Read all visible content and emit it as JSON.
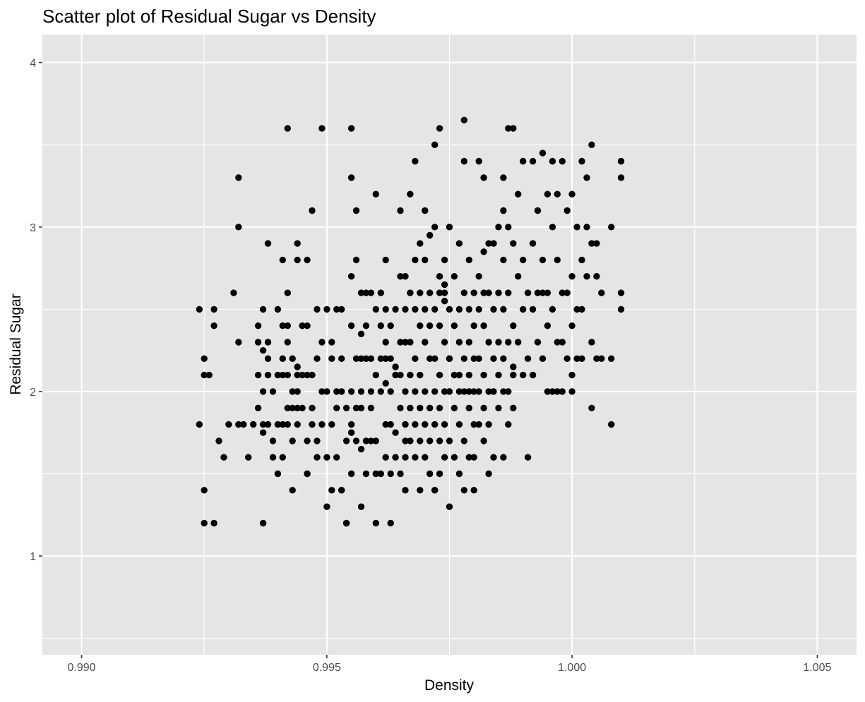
{
  "chart_data": {
    "type": "scatter",
    "title": "Scatter plot of Residual Sugar vs Density",
    "xlabel": "Density",
    "ylabel": "Residual Sugar",
    "xlim": [
      0.9892,
      1.0058
    ],
    "ylim": [
      0.4,
      4.17
    ],
    "x_ticks": [
      0.99,
      0.995,
      1.0,
      1.005
    ],
    "x_tick_labels": [
      "0.990",
      "0.995",
      "1.000",
      "1.005"
    ],
    "y_ticks": [
      1,
      2,
      3,
      4
    ],
    "y_tick_labels": [
      "1",
      "2",
      "3",
      "4"
    ],
    "grid": true,
    "background": "#e5e5e5",
    "point_color": "#000000",
    "points": [
      [
        0.9924,
        2.5
      ],
      [
        0.9924,
        1.8
      ],
      [
        0.9925,
        2.2
      ],
      [
        0.9925,
        2.1
      ],
      [
        0.9925,
        1.4
      ],
      [
        0.9925,
        1.2
      ],
      [
        0.9926,
        2.1
      ],
      [
        0.9927,
        2.5
      ],
      [
        0.9927,
        2.4
      ],
      [
        0.9927,
        1.2
      ],
      [
        0.9928,
        1.7
      ],
      [
        0.9929,
        1.6
      ],
      [
        0.993,
        1.8
      ],
      [
        0.9931,
        2.6
      ],
      [
        0.9932,
        3.3
      ],
      [
        0.9932,
        3.0
      ],
      [
        0.9932,
        2.3
      ],
      [
        0.9932,
        1.8
      ],
      [
        0.9933,
        1.8
      ],
      [
        0.9934,
        1.6
      ],
      [
        0.9935,
        1.8
      ],
      [
        0.9936,
        2.4
      ],
      [
        0.9936,
        2.3
      ],
      [
        0.9936,
        2.1
      ],
      [
        0.9937,
        2.5
      ],
      [
        0.9937,
        2.0
      ],
      [
        0.9937,
        1.75
      ],
      [
        0.9937,
        1.8
      ],
      [
        0.9937,
        1.2
      ],
      [
        0.9938,
        2.3
      ],
      [
        0.9938,
        2.1
      ],
      [
        0.9938,
        1.8
      ],
      [
        0.9938,
        2.2
      ],
      [
        0.9939,
        2.0
      ],
      [
        0.9939,
        1.7
      ],
      [
        0.9939,
        1.6
      ],
      [
        0.994,
        2.5
      ],
      [
        0.994,
        2.1
      ],
      [
        0.994,
        1.8
      ],
      [
        0.9941,
        2.8
      ],
      [
        0.9941,
        2.4
      ],
      [
        0.9941,
        2.2
      ],
      [
        0.9941,
        2.1
      ],
      [
        0.9941,
        1.8
      ],
      [
        0.9941,
        1.6
      ],
      [
        0.9942,
        2.6
      ],
      [
        0.9942,
        2.4
      ],
      [
        0.9942,
        2.3
      ],
      [
        0.9942,
        2.1
      ],
      [
        0.9942,
        1.9
      ],
      [
        0.9942,
        1.8
      ],
      [
        0.9943,
        2.2
      ],
      [
        0.9943,
        2.0
      ],
      [
        0.9943,
        1.7
      ],
      [
        0.9943,
        1.4
      ],
      [
        0.9944,
        2.9
      ],
      [
        0.9944,
        2.8
      ],
      [
        0.9944,
        2.1
      ],
      [
        0.9944,
        2.0
      ],
      [
        0.9944,
        1.9
      ],
      [
        0.9944,
        1.8
      ],
      [
        0.9945,
        2.4
      ],
      [
        0.9945,
        2.1
      ],
      [
        0.9945,
        1.9
      ],
      [
        0.9946,
        2.4
      ],
      [
        0.9946,
        2.1
      ],
      [
        0.9946,
        1.7
      ],
      [
        0.9946,
        1.5
      ],
      [
        0.9946,
        1.5
      ],
      [
        0.9947,
        2.1
      ],
      [
        0.9947,
        1.9
      ],
      [
        0.9947,
        1.8
      ],
      [
        0.9948,
        2.5
      ],
      [
        0.9948,
        2.2
      ],
      [
        0.9948,
        1.7
      ],
      [
        0.9948,
        1.6
      ],
      [
        0.9949,
        3.6
      ],
      [
        0.9949,
        2.3
      ],
      [
        0.9949,
        2.0
      ],
      [
        0.9949,
        1.8
      ],
      [
        0.995,
        1.3
      ],
      [
        0.995,
        2.5
      ],
      [
        0.995,
        2.0
      ],
      [
        0.995,
        1.6
      ],
      [
        0.9951,
        2.3
      ],
      [
        0.9951,
        2.2
      ],
      [
        0.9951,
        1.8
      ],
      [
        0.9951,
        1.4
      ],
      [
        0.9952,
        2.5
      ],
      [
        0.9952,
        2.0
      ],
      [
        0.9952,
        1.6
      ],
      [
        0.9953,
        2.2
      ],
      [
        0.9953,
        2.0
      ],
      [
        0.9953,
        1.4
      ],
      [
        0.9953,
        1.4
      ],
      [
        0.9954,
        1.9
      ],
      [
        0.9954,
        1.7
      ],
      [
        0.9954,
        1.2
      ],
      [
        0.9954,
        1.2
      ],
      [
        0.9955,
        3.3
      ],
      [
        0.9955,
        2.7
      ],
      [
        0.9955,
        2.4
      ],
      [
        0.9955,
        2.0
      ],
      [
        0.9955,
        1.8
      ],
      [
        0.9955,
        1.5
      ],
      [
        0.9956,
        3.1
      ],
      [
        0.9956,
        2.8
      ],
      [
        0.9956,
        2.2
      ],
      [
        0.9956,
        1.9
      ],
      [
        0.9956,
        1.7
      ],
      [
        0.9957,
        2.6
      ],
      [
        0.9957,
        2.2
      ],
      [
        0.9957,
        2.0
      ],
      [
        0.9957,
        1.65
      ],
      [
        0.9957,
        1.3
      ],
      [
        0.9957,
        1.9
      ],
      [
        0.9958,
        2.6
      ],
      [
        0.9958,
        2.2
      ],
      [
        0.9958,
        1.7
      ],
      [
        0.9958,
        1.5
      ],
      [
        0.9959,
        2.6
      ],
      [
        0.9959,
        2.2
      ],
      [
        0.9959,
        2.0
      ],
      [
        0.9959,
        1.9
      ],
      [
        0.9959,
        1.7
      ],
      [
        0.996,
        3.2
      ],
      [
        0.996,
        2.5
      ],
      [
        0.996,
        2.1
      ],
      [
        0.996,
        1.7
      ],
      [
        0.996,
        1.5
      ],
      [
        0.996,
        1.2
      ],
      [
        0.9961,
        2.4
      ],
      [
        0.9961,
        2.2
      ],
      [
        0.9961,
        2.0
      ],
      [
        0.9961,
        1.5
      ],
      [
        0.9962,
        2.8
      ],
      [
        0.9962,
        2.5
      ],
      [
        0.9962,
        2.2
      ],
      [
        0.9962,
        2.05
      ],
      [
        0.9962,
        1.8
      ],
      [
        0.9962,
        1.6
      ],
      [
        0.9963,
        2.4
      ],
      [
        0.9963,
        2.2
      ],
      [
        0.9963,
        2.0
      ],
      [
        0.9963,
        1.8
      ],
      [
        0.9963,
        1.5
      ],
      [
        0.9963,
        1.2
      ],
      [
        0.9964,
        2.5
      ],
      [
        0.9964,
        2.1
      ],
      [
        0.9964,
        1.75
      ],
      [
        0.9964,
        1.6
      ],
      [
        0.9965,
        3.1
      ],
      [
        0.9965,
        2.7
      ],
      [
        0.9965,
        2.3
      ],
      [
        0.9965,
        2.1
      ],
      [
        0.9965,
        1.9
      ],
      [
        0.9965,
        1.5
      ],
      [
        0.9966,
        2.7
      ],
      [
        0.9966,
        2.5
      ],
      [
        0.9966,
        2.3
      ],
      [
        0.9966,
        2.0
      ],
      [
        0.9966,
        1.8
      ],
      [
        0.9966,
        1.6
      ],
      [
        0.9966,
        1.4
      ],
      [
        0.9967,
        3.2
      ],
      [
        0.9967,
        2.6
      ],
      [
        0.9967,
        2.3
      ],
      [
        0.9967,
        2.1
      ],
      [
        0.9967,
        1.9
      ],
      [
        0.9967,
        1.7
      ],
      [
        0.9968,
        2.8
      ],
      [
        0.9968,
        2.5
      ],
      [
        0.9968,
        2.2
      ],
      [
        0.9968,
        2.0
      ],
      [
        0.9968,
        1.8
      ],
      [
        0.9968,
        1.6
      ],
      [
        0.9969,
        2.6
      ],
      [
        0.9969,
        2.4
      ],
      [
        0.9969,
        2.1
      ],
      [
        0.9969,
        1.9
      ],
      [
        0.9969,
        1.7
      ],
      [
        0.9969,
        1.4
      ],
      [
        0.997,
        3.1
      ],
      [
        0.997,
        2.8
      ],
      [
        0.997,
        2.5
      ],
      [
        0.997,
        2.3
      ],
      [
        0.997,
        2.0
      ],
      [
        0.997,
        1.8
      ],
      [
        0.997,
        1.6
      ],
      [
        0.9971,
        2.6
      ],
      [
        0.9971,
        2.4
      ],
      [
        0.9971,
        2.2
      ],
      [
        0.9971,
        1.9
      ],
      [
        0.9971,
        1.7
      ],
      [
        0.9971,
        1.5
      ],
      [
        0.9972,
        3.0
      ],
      [
        0.9972,
        2.5
      ],
      [
        0.9972,
        2.2
      ],
      [
        0.9972,
        2.0
      ],
      [
        0.9972,
        1.8
      ],
      [
        0.9972,
        1.4
      ],
      [
        0.9972,
        1.4
      ],
      [
        0.9973,
        2.6
      ],
      [
        0.9973,
        2.4
      ],
      [
        0.9973,
        2.1
      ],
      [
        0.9973,
        1.9
      ],
      [
        0.9973,
        1.7
      ],
      [
        0.9973,
        1.5
      ],
      [
        0.9974,
        2.8
      ],
      [
        0.9974,
        2.6
      ],
      [
        0.9974,
        2.3
      ],
      [
        0.9974,
        2.0
      ],
      [
        0.9974,
        1.8
      ],
      [
        0.9974,
        1.6
      ],
      [
        0.9975,
        3.0
      ],
      [
        0.9975,
        2.5
      ],
      [
        0.9975,
        2.2
      ],
      [
        0.9975,
        2.0
      ],
      [
        0.9975,
        1.7
      ],
      [
        0.9975,
        1.3
      ],
      [
        0.9976,
        2.7
      ],
      [
        0.9976,
        2.4
      ],
      [
        0.9976,
        2.1
      ],
      [
        0.9976,
        1.9
      ],
      [
        0.9976,
        1.6
      ],
      [
        0.9977,
        2.9
      ],
      [
        0.9977,
        2.5
      ],
      [
        0.9977,
        2.3
      ],
      [
        0.9977,
        2.0
      ],
      [
        0.9977,
        1.8
      ],
      [
        0.9977,
        1.5
      ],
      [
        0.9978,
        3.4
      ],
      [
        0.9978,
        2.6
      ],
      [
        0.9978,
        2.2
      ],
      [
        0.9978,
        2.0
      ],
      [
        0.9978,
        1.7
      ],
      [
        0.9978,
        1.4
      ],
      [
        0.9979,
        2.8
      ],
      [
        0.9979,
        2.5
      ],
      [
        0.9979,
        2.3
      ],
      [
        0.9979,
        2.1
      ],
      [
        0.9979,
        1.9
      ],
      [
        0.9979,
        1.6
      ],
      [
        0.998,
        2.6
      ],
      [
        0.998,
        2.4
      ],
      [
        0.998,
        2.2
      ],
      [
        0.998,
        2.0
      ],
      [
        0.998,
        1.8
      ],
      [
        0.998,
        1.6
      ],
      [
        0.998,
        1.4
      ],
      [
        0.9981,
        3.4
      ],
      [
        0.9981,
        2.7
      ],
      [
        0.9981,
        2.5
      ],
      [
        0.9981,
        2.2
      ],
      [
        0.9981,
        2.0
      ],
      [
        0.9981,
        1.8
      ],
      [
        0.9982,
        3.3
      ],
      [
        0.9982,
        2.6
      ],
      [
        0.9982,
        2.4
      ],
      [
        0.9982,
        2.1
      ],
      [
        0.9982,
        1.9
      ],
      [
        0.9982,
        1.7
      ],
      [
        0.9983,
        2.9
      ],
      [
        0.9983,
        2.6
      ],
      [
        0.9983,
        2.3
      ],
      [
        0.9983,
        2.0
      ],
      [
        0.9983,
        1.8
      ],
      [
        0.9983,
        1.5
      ],
      [
        0.9984,
        2.9
      ],
      [
        0.9984,
        2.5
      ],
      [
        0.9984,
        2.2
      ],
      [
        0.9984,
        2.0
      ],
      [
        0.9984,
        1.6
      ],
      [
        0.9985,
        3.0
      ],
      [
        0.9985,
        2.6
      ],
      [
        0.9985,
        2.3
      ],
      [
        0.9985,
        2.1
      ],
      [
        0.9985,
        1.9
      ],
      [
        0.9986,
        3.3
      ],
      [
        0.9986,
        2.8
      ],
      [
        0.9986,
        2.5
      ],
      [
        0.9986,
        2.2
      ],
      [
        0.9986,
        2.0
      ],
      [
        0.9986,
        1.6
      ],
      [
        0.9987,
        3.6
      ],
      [
        0.9987,
        3.0
      ],
      [
        0.9987,
        2.6
      ],
      [
        0.9987,
        2.3
      ],
      [
        0.9987,
        2.0
      ],
      [
        0.9988,
        2.9
      ],
      [
        0.9988,
        2.4
      ],
      [
        0.9988,
        2.1
      ],
      [
        0.9988,
        1.9
      ],
      [
        0.9989,
        3.2
      ],
      [
        0.9989,
        2.7
      ],
      [
        0.9989,
        2.3
      ],
      [
        0.999,
        3.4
      ],
      [
        0.999,
        2.8
      ],
      [
        0.999,
        2.5
      ],
      [
        0.999,
        2.1
      ],
      [
        0.9991,
        2.6
      ],
      [
        0.9991,
        2.2
      ],
      [
        0.9991,
        1.6
      ],
      [
        0.9992,
        3.4
      ],
      [
        0.9992,
        2.9
      ],
      [
        0.9992,
        2.5
      ],
      [
        0.9992,
        2.1
      ],
      [
        0.9993,
        3.1
      ],
      [
        0.9993,
        2.6
      ],
      [
        0.9993,
        2.3
      ],
      [
        0.9994,
        3.45
      ],
      [
        0.9994,
        2.8
      ],
      [
        0.9994,
        2.6
      ],
      [
        0.9994,
        2.2
      ],
      [
        0.9995,
        3.2
      ],
      [
        0.9995,
        2.6
      ],
      [
        0.9995,
        2.4
      ],
      [
        0.9995,
        2.0
      ],
      [
        0.9996,
        3.4
      ],
      [
        0.9996,
        3.0
      ],
      [
        0.9996,
        2.5
      ],
      [
        0.9996,
        2.0
      ],
      [
        0.9997,
        3.2
      ],
      [
        0.9997,
        2.8
      ],
      [
        0.9997,
        2.3
      ],
      [
        0.9997,
        2.0
      ],
      [
        0.9998,
        3.4
      ],
      [
        0.9998,
        2.6
      ],
      [
        0.9998,
        2.3
      ],
      [
        0.9998,
        2.0
      ],
      [
        0.9999,
        3.1
      ],
      [
        0.9999,
        2.6
      ],
      [
        0.9999,
        2.2
      ],
      [
        1.0,
        3.2
      ],
      [
        1.0,
        2.7
      ],
      [
        1.0,
        2.4
      ],
      [
        1.0,
        2.1
      ],
      [
        1.0,
        2.0
      ],
      [
        1.0001,
        3.0
      ],
      [
        1.0001,
        2.5
      ],
      [
        1.0001,
        2.2
      ],
      [
        1.0002,
        3.4
      ],
      [
        1.0002,
        2.8
      ],
      [
        1.0002,
        2.5
      ],
      [
        1.0002,
        2.2
      ],
      [
        1.0003,
        3.3
      ],
      [
        1.0003,
        3.0
      ],
      [
        1.0003,
        2.7
      ],
      [
        1.0004,
        3.5
      ],
      [
        1.0004,
        2.9
      ],
      [
        1.0004,
        2.3
      ],
      [
        1.0004,
        1.9
      ],
      [
        1.0005,
        2.9
      ],
      [
        1.0005,
        2.7
      ],
      [
        1.0005,
        2.2
      ],
      [
        1.0006,
        2.6
      ],
      [
        1.0006,
        2.2
      ],
      [
        1.0008,
        3.0
      ],
      [
        1.0008,
        2.2
      ],
      [
        1.0008,
        1.8
      ],
      [
        1.001,
        3.4
      ],
      [
        1.001,
        3.3
      ],
      [
        1.001,
        2.6
      ],
      [
        1.001,
        2.5
      ],
      [
        0.9942,
        3.6
      ],
      [
        0.9955,
        3.6
      ],
      [
        0.9973,
        3.6
      ],
      [
        0.9978,
        3.65
      ],
      [
        0.9988,
        3.6
      ],
      [
        0.9972,
        3.5
      ],
      [
        0.9947,
        3.1
      ],
      [
        0.9968,
        3.4
      ],
      [
        0.9986,
        3.1
      ],
      [
        0.9938,
        2.9
      ],
      [
        0.9982,
        2.85
      ],
      [
        0.9974,
        2.65
      ],
      [
        0.9957,
        2.35
      ],
      [
        0.9937,
        2.25
      ],
      [
        0.9974,
        2.55
      ],
      [
        0.9971,
        2.95
      ],
      [
        0.9964,
        2.15
      ],
      [
        0.9988,
        2.15
      ],
      [
        0.9955,
        1.75
      ],
      [
        0.9944,
        2.15
      ],
      [
        0.9973,
        2.7
      ],
      [
        0.9969,
        2.9
      ],
      [
        0.9946,
        2.8
      ],
      [
        0.9958,
        2.4
      ],
      [
        0.9962,
        2.3
      ],
      [
        0.9975,
        2.2
      ],
      [
        0.9943,
        1.9
      ],
      [
        0.9952,
        1.9
      ],
      [
        0.9977,
        2.1
      ],
      [
        0.9966,
        1.7
      ],
      [
        0.9987,
        1.8
      ],
      [
        0.9936,
        1.9
      ],
      [
        0.994,
        1.5
      ],
      [
        0.9953,
        2.5
      ],
      [
        0.9979,
        2.0
      ],
      [
        0.9961,
        2.6
      ]
    ]
  }
}
